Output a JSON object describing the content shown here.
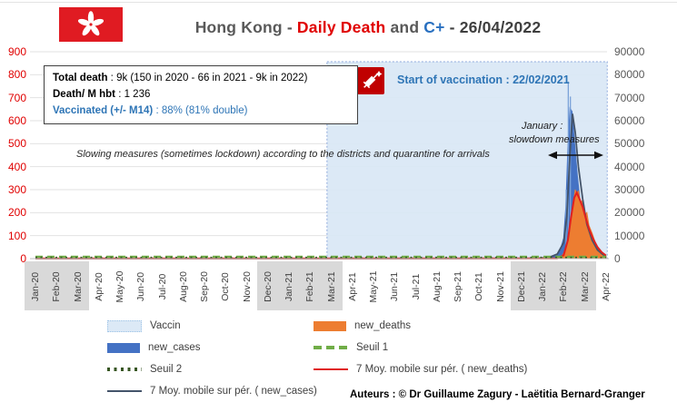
{
  "header": {
    "title_prefix": "Hong Kong - ",
    "title_daily_death": "Daily Death",
    "title_and": " and ",
    "title_cplus": "C+",
    "title_date": " - 26/04/2022"
  },
  "info_box": {
    "line1_label": "Total death",
    "line1_value": " : 9k (150 in 2020 - 66 in 2021 - 9k in 2022)",
    "line2_label": "Death/ M hbt",
    "line2_value": " : 1 236",
    "line3_label": "Vaccinated (+/- M14)",
    "line3_value": " : 88% (81% double)"
  },
  "annotations": {
    "vaccination_start": "Start of vaccination : 22/02/2021",
    "slowing_measures": "Slowing measures (sometimes lockdown) according to the districts and quarantine for arrivals",
    "january_line1": "January :",
    "january_line2": "slowdown measures"
  },
  "footer": {
    "authors": "Auteurs : © Dr Guillaume Zagury - Laëtitia Bernard-Granger"
  },
  "legend": {
    "items": [
      {
        "label": "Vaccin",
        "swatch": "vaccin",
        "color": "#dce9f6",
        "border": "#9dc3e6"
      },
      {
        "label": "new_deaths",
        "swatch": "area",
        "color": "#ed7d31"
      },
      {
        "label": "new_cases",
        "swatch": "area",
        "color": "#4472c4"
      },
      {
        "label": "Seuil 1",
        "swatch": "dash",
        "color": "#70ad47"
      },
      {
        "label": "Seuil 2",
        "swatch": "dot",
        "color": "#375623"
      },
      {
        "label": "7 Moy. mobile sur pér. ( new_deaths)",
        "swatch": "line",
        "color": "#e02020"
      },
      {
        "label": "7 Moy. mobile sur pér. ( new_cases)",
        "swatch": "line",
        "color": "#44546a"
      }
    ]
  },
  "chart_data": {
    "type": "combo: area + line (dual axis)",
    "title": "Hong Kong - Daily Death and C+ - 26/04/2022",
    "x_categories": [
      "Jan-20",
      "Feb-20",
      "Mar-20",
      "Apr-20",
      "May-20",
      "Jun-20",
      "Jul-20",
      "Aug-20",
      "Sep-20",
      "Oct-20",
      "Nov-20",
      "Dec-20",
      "Jan-21",
      "Feb-21",
      "Mar-21",
      "Apr-21",
      "May-21",
      "Jun-21",
      "Jul-21",
      "Aug-21",
      "Sep-21",
      "Oct-21",
      "Nov-21",
      "Dec-21",
      "Jan-22",
      "Feb-22",
      "Mar-22",
      "Apr-22"
    ],
    "x_highlight_groups": [
      [
        0,
        2
      ],
      [
        11,
        14
      ],
      [
        23,
        26
      ]
    ],
    "left_axis": {
      "title": "daily deaths",
      "min": 0,
      "max": 900,
      "step": 100,
      "color": "#e00000",
      "ticks": [
        0,
        100,
        200,
        300,
        400,
        500,
        600,
        700,
        800,
        900
      ]
    },
    "right_axis": {
      "title": "daily cases (C+)",
      "min": 0,
      "max": 90000,
      "step": 10000,
      "color": "#595959",
      "ticks": [
        0,
        10000,
        20000,
        30000,
        40000,
        50000,
        60000,
        70000,
        80000,
        90000
      ]
    },
    "grid": true,
    "legend_position": "bottom",
    "vaccin_region": {
      "label": "Vaccin",
      "start_month": 13.8,
      "end_month": 27,
      "fill": "#d9e7f5",
      "border": "#8faadc"
    },
    "series": [
      {
        "name": "new_cases",
        "axis": "right",
        "style": "area",
        "color": "#4472c4",
        "points": [
          [
            0,
            30
          ],
          [
            5,
            50
          ],
          [
            10,
            40
          ],
          [
            14,
            60
          ],
          [
            18,
            40
          ],
          [
            22,
            80
          ],
          [
            23.5,
            120
          ],
          [
            24,
            200
          ],
          [
            24.5,
            700
          ],
          [
            24.8,
            2500
          ],
          [
            25.0,
            9000
          ],
          [
            25.1,
            22000
          ],
          [
            25.2,
            48000
          ],
          [
            25.3,
            65500
          ],
          [
            25.4,
            64000
          ],
          [
            25.5,
            52000
          ],
          [
            25.65,
            36000
          ],
          [
            25.8,
            23000
          ],
          [
            26.0,
            13000
          ],
          [
            26.2,
            7000
          ],
          [
            26.5,
            3200
          ],
          [
            26.8,
            1600
          ],
          [
            27,
            900
          ]
        ]
      },
      {
        "name": "new_deaths",
        "axis": "left",
        "style": "area",
        "color": "#ed7d31",
        "points": [
          [
            0,
            0
          ],
          [
            24.6,
            0
          ],
          [
            24.9,
            8
          ],
          [
            25.1,
            40
          ],
          [
            25.3,
            130
          ],
          [
            25.45,
            230
          ],
          [
            25.55,
            300
          ],
          [
            25.62,
            270
          ],
          [
            25.7,
            295
          ],
          [
            25.8,
            240
          ],
          [
            25.9,
            255
          ],
          [
            26.0,
            190
          ],
          [
            26.1,
            200
          ],
          [
            26.2,
            145
          ],
          [
            26.35,
            110
          ],
          [
            26.5,
            70
          ],
          [
            26.65,
            45
          ],
          [
            26.8,
            28
          ],
          [
            27,
            12
          ]
        ]
      },
      {
        "name": "7 Moy. mobile sur pér. ( new_cases)",
        "axis": "right",
        "style": "line",
        "color": "#44546a",
        "width": 1.8,
        "points": [
          [
            0,
            20
          ],
          [
            10,
            30
          ],
          [
            20,
            50
          ],
          [
            23.8,
            150
          ],
          [
            24.3,
            500
          ],
          [
            24.7,
            2000
          ],
          [
            25.0,
            7000
          ],
          [
            25.15,
            18000
          ],
          [
            25.3,
            45000
          ],
          [
            25.42,
            63000
          ],
          [
            25.55,
            55000
          ],
          [
            25.7,
            40000
          ],
          [
            25.9,
            26000
          ],
          [
            26.1,
            15000
          ],
          [
            26.35,
            8000
          ],
          [
            26.6,
            3800
          ],
          [
            26.85,
            1800
          ],
          [
            27,
            1100
          ]
        ]
      },
      {
        "name": "7 Moy. mobile sur pér. ( new_deaths)",
        "axis": "left",
        "style": "line",
        "color": "#e02020",
        "width": 2,
        "points": [
          [
            0,
            1
          ],
          [
            24.7,
            1
          ],
          [
            25.0,
            15
          ],
          [
            25.2,
            80
          ],
          [
            25.35,
            180
          ],
          [
            25.5,
            265
          ],
          [
            25.62,
            287
          ],
          [
            25.75,
            260
          ],
          [
            25.9,
            225
          ],
          [
            26.05,
            175
          ],
          [
            26.2,
            130
          ],
          [
            26.4,
            85
          ],
          [
            26.6,
            50
          ],
          [
            26.8,
            28
          ],
          [
            27,
            14
          ]
        ]
      },
      {
        "name": "Seuil 1",
        "axis": "left",
        "style": "dash",
        "color": "#70ad47",
        "width": 2.6,
        "points": [
          [
            0,
            8
          ],
          [
            27,
            8
          ]
        ]
      },
      {
        "name": "Seuil 2",
        "axis": "left",
        "style": "dot",
        "color": "#375623",
        "width": 2.2,
        "points": [
          [
            0,
            4
          ],
          [
            27,
            4
          ]
        ]
      }
    ],
    "raw_case_spikes": [
      [
        25.12,
        30000
      ],
      [
        25.22,
        77000
      ],
      [
        25.32,
        70500
      ]
    ],
    "annotation_arrow": {
      "x1_month": 24.3,
      "x2_month": 26.85,
      "y_left_value": 450
    }
  }
}
